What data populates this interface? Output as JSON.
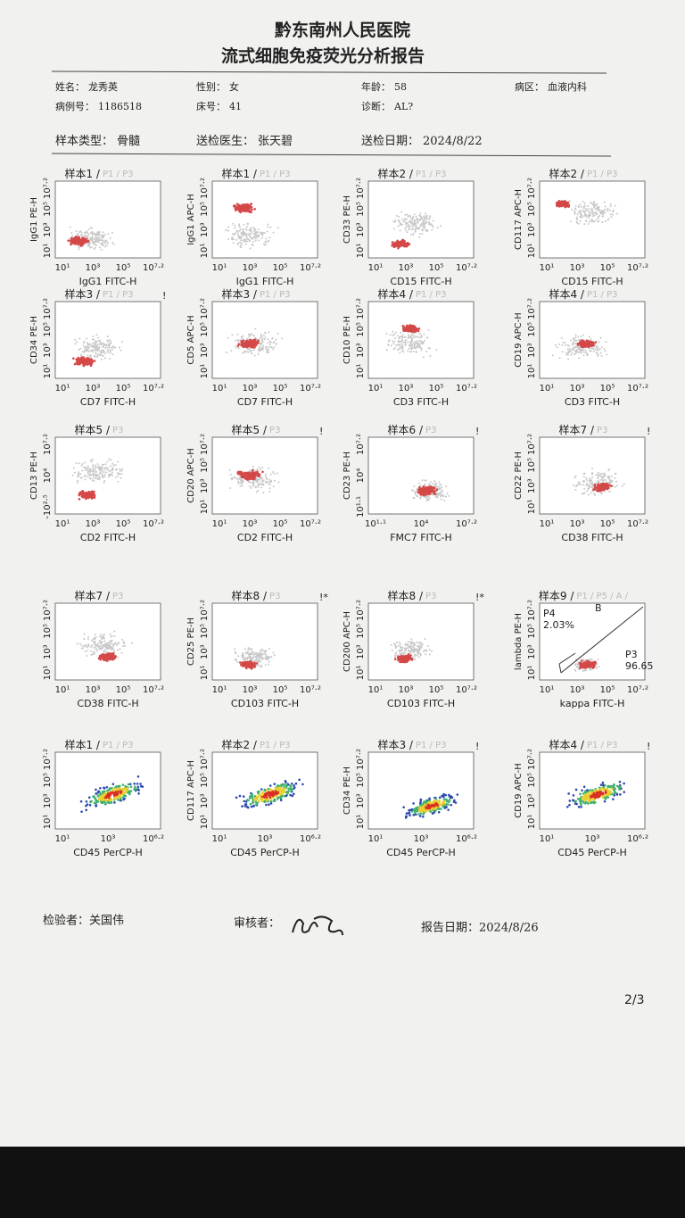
{
  "header": {
    "hospital": "黔东南州人民医院",
    "title": "流式细胞免疫荧光分析报告"
  },
  "info": [
    {
      "label": "姓名：",
      "value": "龙秀英"
    },
    {
      "label": "性别：",
      "value": "女"
    },
    {
      "label": "年龄：",
      "value": "58"
    },
    {
      "label": "病区：",
      "value": "血液内科"
    },
    {
      "label": "病例号：",
      "value": "1186518"
    },
    {
      "label": "床号：",
      "value": "41"
    },
    {
      "label": "诊断：",
      "value": "AL?"
    },
    {
      "label": "样本类型：",
      "value": "骨髓"
    },
    {
      "label": "送检医生：",
      "value": "张天碧"
    },
    {
      "label": "送检日期：",
      "value": "2024/8/22"
    }
  ],
  "plots": [
    {
      "sample": "样本1 /",
      "gates": "P1 / P3",
      "ylabel": "IgG1 PE-H",
      "xlabel": "IgG1 FITC-H",
      "xticks": [
        "10¹",
        "10³",
        "10⁵",
        "10⁷·²"
      ],
      "yticks": [
        "10¹",
        "10³",
        "10⁵",
        "10⁷·²"
      ]
    },
    {
      "sample": "样本1 /",
      "gates": "P1 / P3",
      "ylabel": "IgG1 APC-H",
      "xlabel": "IgG1 FITC-H",
      "xticks": [
        "10¹",
        "10³",
        "10⁵",
        "10⁷·²"
      ],
      "yticks": [
        "10¹",
        "10³",
        "10⁵",
        "10⁷·²"
      ]
    },
    {
      "sample": "样本2 /",
      "gates": "P1 / P3",
      "ylabel": "CD33 PE-H",
      "xlabel": "CD15 FITC-H",
      "xticks": [
        "10¹",
        "10³",
        "10⁵",
        "10⁷·²"
      ],
      "yticks": [
        "10¹",
        "10³",
        "10⁵",
        "10⁷·²"
      ]
    },
    {
      "sample": "样本2 /",
      "gates": "P1 / P3",
      "ylabel": "CD117 APC-H",
      "xlabel": "CD15 FITC-H",
      "xticks": [
        "10¹",
        "10³",
        "10⁵",
        "10⁷·²"
      ],
      "yticks": [
        "10¹",
        "10³",
        "10⁵",
        "10⁷·²"
      ]
    },
    {
      "sample": "样本3 /",
      "gates": "P1 / P3",
      "ylabel": "CD34 PE-H",
      "xlabel": "CD7 FITC-H",
      "xticks": [
        "10¹",
        "10³",
        "10⁵",
        "10⁷·²"
      ],
      "yticks": [
        "10¹",
        "10³",
        "10⁵",
        "10⁷·²"
      ],
      "flag": "!"
    },
    {
      "sample": "样本3 /",
      "gates": "P1 / P3",
      "ylabel": "CD5 APC-H",
      "xlabel": "CD7 FITC-H",
      "xticks": [
        "10¹",
        "10³",
        "10⁵",
        "10⁷·²"
      ],
      "yticks": [
        "10¹",
        "10³",
        "10⁵",
        "10⁷·²"
      ]
    },
    {
      "sample": "样本4 /",
      "gates": "P1 / P3",
      "ylabel": "CD10 PE-H",
      "xlabel": "CD3 FITC-H",
      "xticks": [
        "10¹",
        "10³",
        "10⁵",
        "10⁷·²"
      ],
      "yticks": [
        "10¹",
        "10³",
        "10⁵",
        "10⁷·²"
      ]
    },
    {
      "sample": "样本4 /",
      "gates": "P1 / P3",
      "ylabel": "CD19 APC-H",
      "xlabel": "CD3 FITC-H",
      "xticks": [
        "10¹",
        "10³",
        "10⁵",
        "10⁷·²"
      ],
      "yticks": [
        "10¹",
        "10³",
        "10⁵",
        "10⁷·²"
      ]
    },
    {
      "sample": "样本5 /",
      "gates": "P3",
      "ylabel": "CD13 PE-H",
      "xlabel": "CD2 FITC-H",
      "xticks": [
        "10¹",
        "10³",
        "10⁵",
        "10⁷·²"
      ],
      "yticks": [
        "-10²·⁵",
        "10⁴",
        "10⁷·²"
      ]
    },
    {
      "sample": "样本5 /",
      "gates": "P3",
      "ylabel": "CD20 APC-H",
      "xlabel": "CD2 FITC-H",
      "xticks": [
        "10¹",
        "10³",
        "10⁵",
        "10⁷·²"
      ],
      "yticks": [
        "10¹",
        "10³",
        "10⁵",
        "10⁷·²"
      ],
      "flag": "!"
    },
    {
      "sample": "样本6 /",
      "gates": "P3",
      "ylabel": "CD23 PE-H",
      "xlabel": "FMC7 FITC-H",
      "xticks": [
        "10¹·¹",
        "10⁴",
        "10⁷·²"
      ],
      "yticks": [
        "10¹·¹",
        "10⁴",
        "10⁷·²"
      ],
      "flag": "!"
    },
    {
      "sample": "样本7 /",
      "gates": "P3",
      "ylabel": "CD22 PE-H",
      "xlabel": "CD38 FITC-H",
      "xticks": [
        "10¹",
        "10³",
        "10⁵",
        "10⁷·²"
      ],
      "yticks": [
        "10¹",
        "10³",
        "10⁵",
        "10⁷·²"
      ],
      "flag": "!"
    },
    {
      "sample": "样本7 /",
      "gates": "P3",
      "xlabel": "CD38 FITC-H",
      "xticks": [
        "10¹",
        "10³",
        "10⁵",
        "10⁷·²"
      ],
      "yticks": [
        "10¹",
        "10³",
        "10⁵",
        "10⁷·²"
      ]
    },
    {
      "sample": "样本8 /",
      "gates": "P3",
      "ylabel": "CD25 PE-H",
      "xlabel": "CD103 FITC-H",
      "xticks": [
        "10¹",
        "10³",
        "10⁵",
        "10⁷·²"
      ],
      "yticks": [
        "10¹",
        "10³",
        "10⁵",
        "10⁷·²"
      ],
      "flag": "!*"
    },
    {
      "sample": "样本8 /",
      "gates": "P3",
      "ylabel": "CD200 APC-H",
      "xlabel": "CD103 FITC-H",
      "xticks": [
        "10¹",
        "10³",
        "10⁵",
        "10⁷·²"
      ],
      "yticks": [
        "10¹",
        "10³",
        "10⁵",
        "10⁷·²"
      ],
      "flag": "!*"
    },
    {
      "sample": "样本9 /",
      "gates": "P1 / P5 / A /",
      "ylabel": "lambda PE-H",
      "xlabel": "kappa FITC-H",
      "xticks": [
        "10¹",
        "10³",
        "10⁵",
        "10⁷·²"
      ],
      "yticks": [
        "10¹",
        "10³",
        "10⁵",
        "10⁷·²"
      ],
      "regions": [
        "P4",
        "2.03%",
        "P3",
        "96.65",
        "B"
      ]
    },
    {
      "sample": "样本1 /",
      "gates": "P1 / P3",
      "xlabel": "CD45 PerCP-H",
      "xticks": [
        "10¹",
        "10³",
        "10⁶·²"
      ],
      "yticks": [
        "10¹",
        "10³",
        "10⁵",
        "10⁷·²"
      ]
    },
    {
      "sample": "样本2 /",
      "gates": "P1 / P3",
      "ylabel": "CD117 APC-H",
      "xlabel": "CD45 PerCP-H",
      "xticks": [
        "10¹",
        "10³",
        "10⁶·²"
      ],
      "yticks": [
        "10¹",
        "10³",
        "10⁵",
        "10⁷·²"
      ]
    },
    {
      "sample": "样本3 /",
      "gates": "P1 / P3",
      "ylabel": "CD34 PE-H",
      "xlabel": "CD45 PerCP-H",
      "xticks": [
        "10¹",
        "10³",
        "10⁶·²"
      ],
      "yticks": [
        "10¹",
        "10³",
        "10⁵",
        "10⁷·²"
      ],
      "flag": "!"
    },
    {
      "sample": "样本4 /",
      "gates": "P1 / P3",
      "ylabel": "CD19 APC-H",
      "xlabel": "CD45 PerCP-H",
      "xticks": [
        "10¹",
        "10³",
        "10⁶·²"
      ],
      "yticks": [
        "10¹",
        "10³",
        "10⁵",
        "10⁷·²"
      ],
      "flag": "!"
    }
  ],
  "footer": {
    "tester": "检验者：关国伟",
    "reviewer": "审核者：",
    "report_date": "报告日期：2024/8/26",
    "page": "2/3"
  }
}
